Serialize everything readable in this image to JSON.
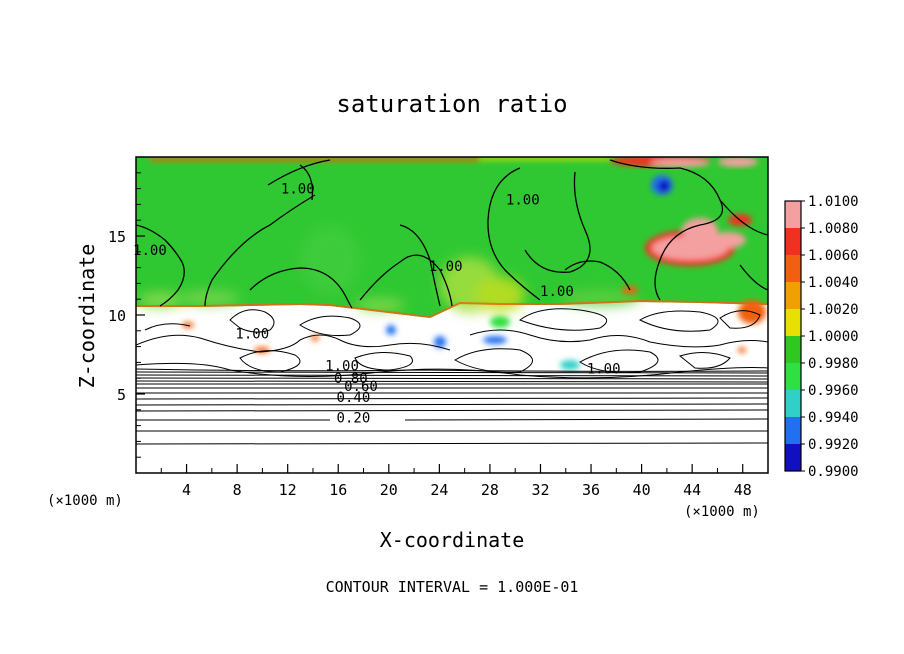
{
  "chart_data": {
    "type": "heatmap",
    "title": "saturation ratio",
    "xlabel": "X-coordinate",
    "ylabel": "Z-coordinate",
    "x_unit_label_left": "(×1000 m)",
    "x_unit_label_right": "(×1000 m)",
    "xlim": [
      0,
      50
    ],
    "ylim": [
      0,
      20
    ],
    "x_ticks": [
      4,
      8,
      12,
      16,
      20,
      24,
      28,
      32,
      36,
      40,
      44,
      48
    ],
    "y_ticks": [
      5,
      10,
      15
    ],
    "footer": "CONTOUR INTERVAL = 1.000E-01",
    "colorbar": {
      "levels": [
        "1.0100",
        "1.0080",
        "1.0060",
        "1.0040",
        "1.0020",
        "1.0000",
        "0.9980",
        "0.9960",
        "0.9940",
        "0.9920",
        "0.9900"
      ],
      "colors": [
        "#f4a0a0",
        "#f03020",
        "#f06010",
        "#f0a000",
        "#e8e000",
        "#30c820",
        "#30e040",
        "#30d0c8",
        "#2070f0",
        "#1010c0",
        "#7020a0"
      ]
    },
    "contour_labels": [
      {
        "text": "1.00",
        "x": 12.8,
        "z": 17.7
      },
      {
        "text": "1.00",
        "x": 30.6,
        "z": 17.0
      },
      {
        "text": "1.00",
        "x": 1.1,
        "z": 13.8
      },
      {
        "text": "1.00",
        "x": 24.5,
        "z": 12.8
      },
      {
        "text": "1.00",
        "x": 33.3,
        "z": 11.2
      },
      {
        "text": "1.00",
        "x": 9.2,
        "z": 8.5
      },
      {
        "text": "1.00",
        "x": 16.3,
        "z": 6.5
      },
      {
        "text": "1.00",
        "x": 37.0,
        "z": 6.3
      },
      {
        "text": "0.80",
        "x": 17.0,
        "z": 5.7
      },
      {
        "text": "0.60",
        "x": 17.8,
        "z": 5.2
      },
      {
        "text": "0.40",
        "x": 17.2,
        "z": 4.5
      },
      {
        "text": "0.20",
        "x": 17.2,
        "z": 3.2
      }
    ]
  }
}
